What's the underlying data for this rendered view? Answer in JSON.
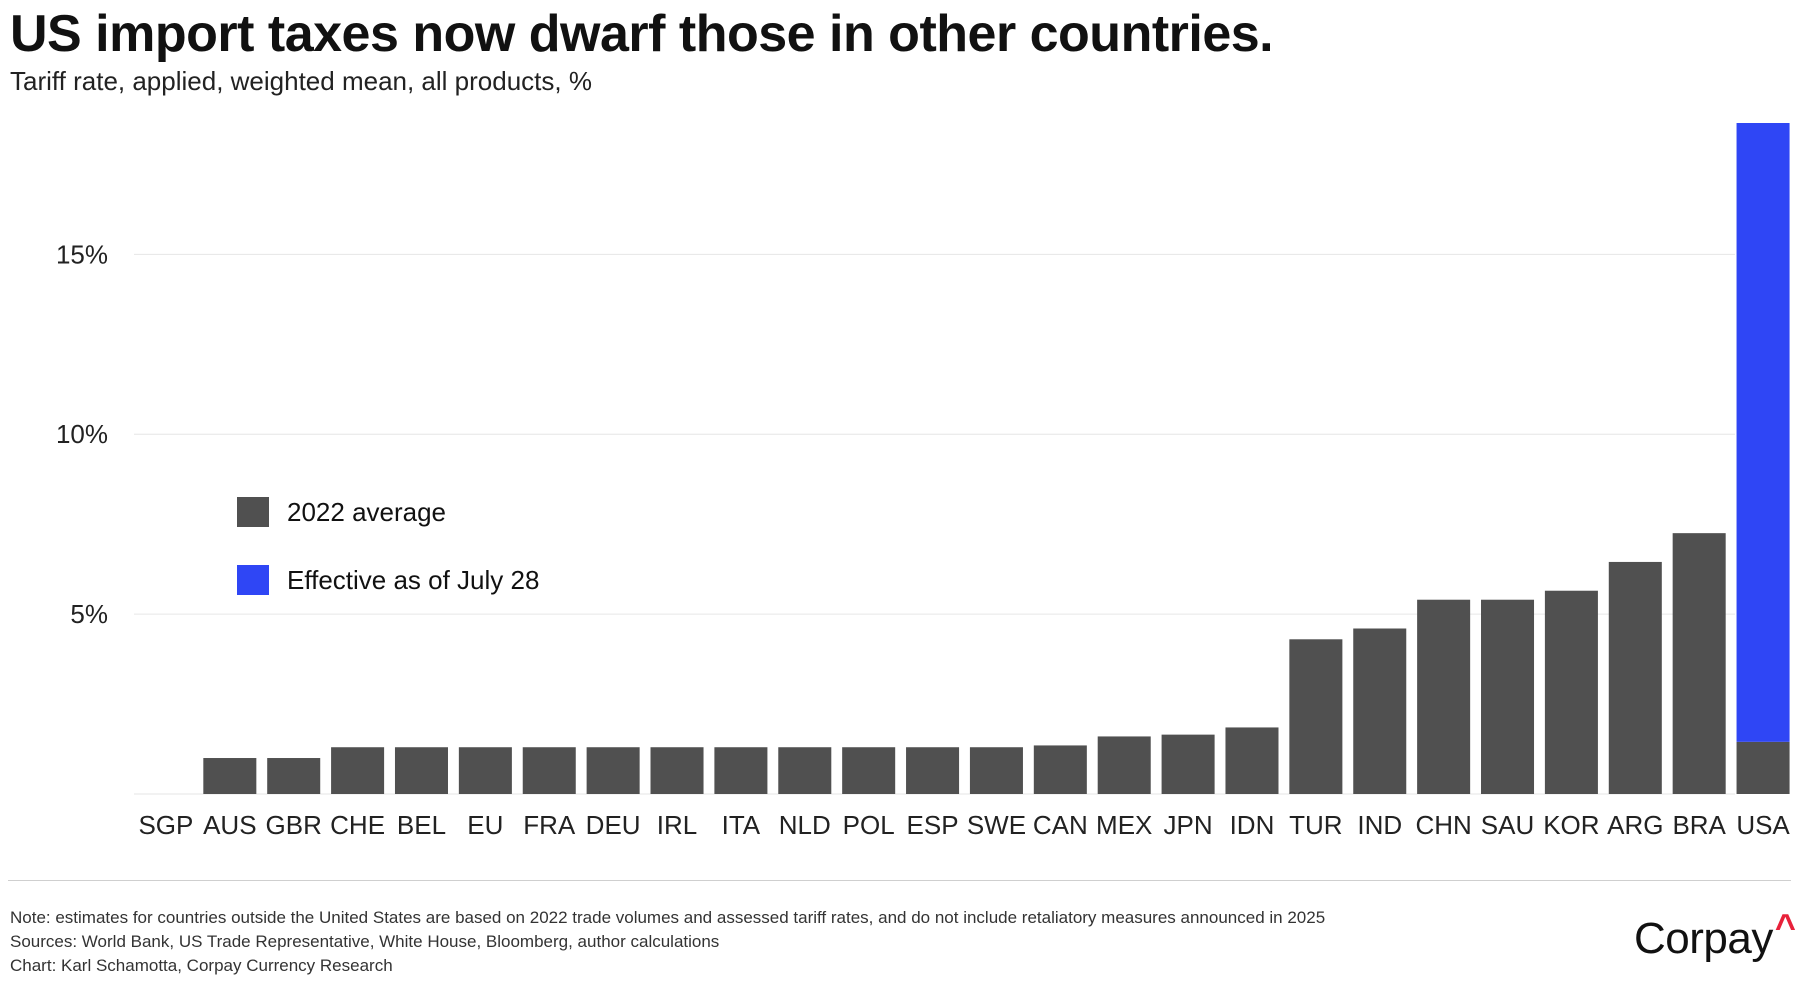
{
  "header": {
    "title": "US import taxes now dwarf those in other countries.",
    "subtitle": "Tariff rate, applied, weighted mean, all products, %"
  },
  "colors": {
    "avg2022": "#505050",
    "effective": "#2f46f5",
    "grid": "#e6e6e6",
    "brand_accent": "#e8213a"
  },
  "chart_data": {
    "type": "bar",
    "stacked": true,
    "categories": [
      "SGP",
      "AUS",
      "GBR",
      "CHE",
      "BEL",
      "EU",
      "FRA",
      "DEU",
      "IRL",
      "ITA",
      "NLD",
      "POL",
      "ESP",
      "SWE",
      "CAN",
      "MEX",
      "JPN",
      "IDN",
      "TUR",
      "IND",
      "CHN",
      "SAU",
      "KOR",
      "ARG",
      "BRA",
      "USA"
    ],
    "series": [
      {
        "name": "2022 average",
        "color": "#505050",
        "values": [
          0.0,
          1.0,
          1.0,
          1.3,
          1.3,
          1.3,
          1.3,
          1.3,
          1.3,
          1.3,
          1.3,
          1.3,
          1.3,
          1.3,
          1.35,
          1.6,
          1.65,
          1.85,
          4.3,
          4.6,
          5.4,
          5.4,
          5.65,
          6.45,
          7.25,
          1.45
        ]
      },
      {
        "name": "Effective as of July 28",
        "color": "#2f46f5",
        "values": [
          0,
          0,
          0,
          0,
          0,
          0,
          0,
          0,
          0,
          0,
          0,
          0,
          0,
          0,
          0,
          0,
          0,
          0,
          0,
          0,
          0,
          0,
          0,
          0,
          0,
          17.2
        ]
      }
    ],
    "yticks": [
      5,
      10,
      15
    ],
    "ytick_labels": [
      "5%",
      "10%",
      "15%"
    ],
    "ylim": [
      0,
      18.65
    ],
    "grid": true,
    "legend_position": "left-middle"
  },
  "footer": {
    "note": "Note: estimates for countries outside the United States are based on 2022 trade volumes and assessed tariff rates, and do not include retaliatory measures announced in 2025",
    "sources": "Sources: World Bank, US Trade Representative, White House, Bloomberg, author calculations",
    "credit": "Chart: Karl Schamotta, Corpay Currency Research"
  },
  "brand": {
    "name": "Corpay",
    "mark": "^"
  }
}
